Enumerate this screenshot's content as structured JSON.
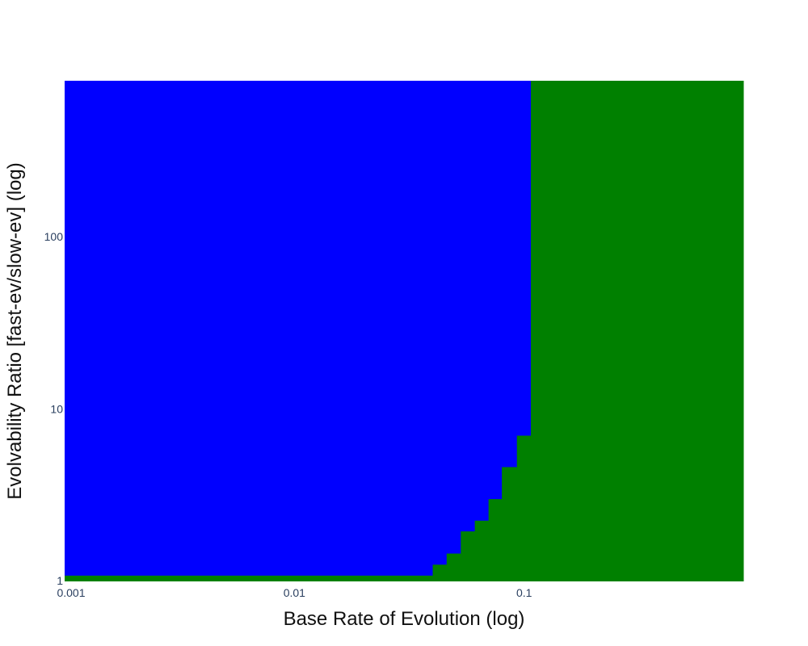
{
  "chart_data": {
    "type": "heatmap",
    "title": "",
    "xlabel": "Base Rate of Evolution (log)",
    "ylabel": "Evolvability Ratio [fast-ev/slow-ev] (log)",
    "x_scale": "log",
    "y_scale": "log",
    "xlim": [
      0.001,
      0.9
    ],
    "ylim": [
      1,
      800
    ],
    "x_ticks": [
      {
        "value": 0.001,
        "label": "0.001"
      },
      {
        "value": 0.01,
        "label": "0.01"
      },
      {
        "value": 0.1,
        "label": "0.1"
      }
    ],
    "y_ticks": [
      {
        "value": 1,
        "label": "1"
      },
      {
        "value": 10,
        "label": "10"
      },
      {
        "value": 100,
        "label": "100"
      }
    ],
    "grid": false,
    "legend": "none",
    "regions": [
      {
        "color": "#0000ff"
      },
      {
        "color": "#008000"
      }
    ],
    "boundary_note": "Green region lies right of/below the step boundary; blue region above/left.",
    "boundary_steps": [
      {
        "x_from": 0.001,
        "x_to": 0.04,
        "y_max": 1.08
      },
      {
        "x_from": 0.04,
        "x_to": 0.046,
        "y_max": 1.25
      },
      {
        "x_from": 0.046,
        "x_to": 0.053,
        "y_max": 1.45
      },
      {
        "x_from": 0.053,
        "x_to": 0.061,
        "y_max": 1.95
      },
      {
        "x_from": 0.061,
        "x_to": 0.07,
        "y_max": 2.25
      },
      {
        "x_from": 0.07,
        "x_to": 0.08,
        "y_max": 3.0
      },
      {
        "x_from": 0.08,
        "x_to": 0.093,
        "y_max": 4.6
      },
      {
        "x_from": 0.093,
        "x_to": 0.107,
        "y_max": 7.0
      },
      {
        "x_from": 0.107,
        "x_to": 0.9,
        "y_max": 800
      }
    ]
  }
}
